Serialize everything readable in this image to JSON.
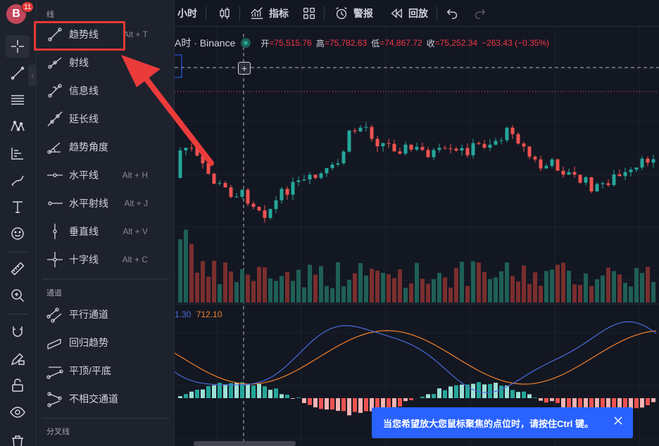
{
  "user": {
    "initial": "B",
    "badge": "11"
  },
  "top_toolbar": {
    "interval_label": "小时",
    "indicators_label": "指标",
    "alerts_label": "警报",
    "replay_label": "回放"
  },
  "chart": {
    "symbol": "A时 · Binance",
    "open_label": "开",
    "open_value": "=75,515.76",
    "high_label": "高",
    "high_value": "=75,782.63",
    "low_label": "低",
    "low_value": "=74,867.72",
    "close_label": "收",
    "close_value": "=75,252.34",
    "change": "−263.43 (−0.35%)",
    "macd_value1": "1.30",
    "macd_value2": "712.10",
    "colors": {
      "up": "#26a69a",
      "down": "#ef5350",
      "macd": "#4b6bdb",
      "signal": "#f5812a"
    }
  },
  "dropdown": {
    "section_lines": "线",
    "items": [
      {
        "label": "趋势线",
        "shortcut": "Alt + T",
        "icon": "trend-line-icon"
      },
      {
        "label": "射线",
        "shortcut": "",
        "icon": "ray-icon"
      },
      {
        "label": "信息线",
        "shortcut": "",
        "icon": "info-line-icon"
      },
      {
        "label": "延长线",
        "shortcut": "",
        "icon": "extended-line-icon"
      },
      {
        "label": "趋势角度",
        "shortcut": "",
        "icon": "trend-angle-icon"
      },
      {
        "label": "水平线",
        "shortcut": "Alt + H",
        "icon": "horizontal-line-icon"
      },
      {
        "label": "水平射线",
        "shortcut": "Alt + J",
        "icon": "horizontal-ray-icon"
      },
      {
        "label": "垂直线",
        "shortcut": "Alt + V",
        "icon": "vertical-line-icon"
      },
      {
        "label": "十字线",
        "shortcut": "Alt + C",
        "icon": "cross-line-icon"
      }
    ],
    "section_channels": "通道",
    "channel_items": [
      {
        "label": "平行通道",
        "icon": "parallel-channel-icon"
      },
      {
        "label": "回归趋势",
        "icon": "regression-trend-icon"
      },
      {
        "label": "平顶/平底",
        "icon": "flat-top-bottom-icon"
      },
      {
        "label": "不相交通道",
        "icon": "disjoint-channel-icon"
      }
    ],
    "section_pitchforks": "分叉线"
  },
  "toast": {
    "message": "当您希望放大您鼠标聚焦的点位时，请按住Ctrl 键。"
  }
}
